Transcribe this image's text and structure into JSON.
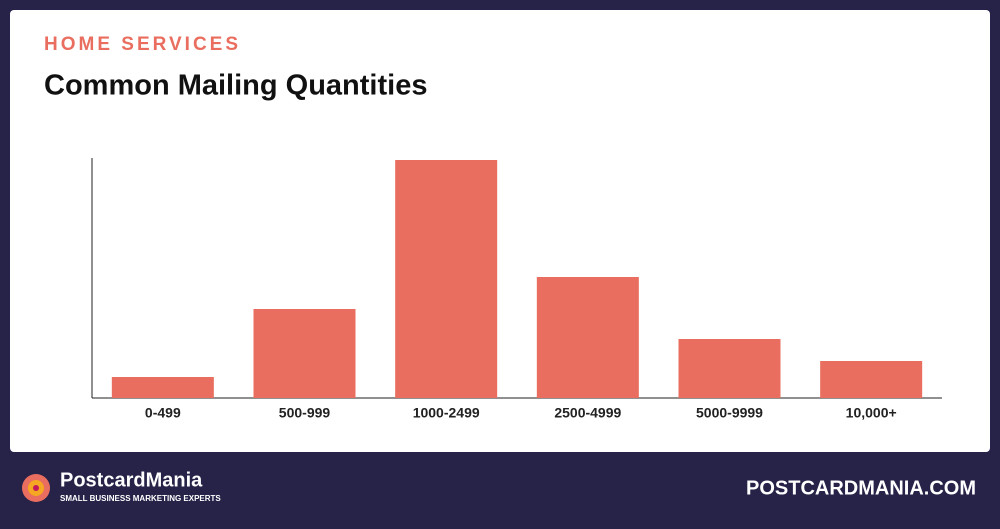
{
  "chart_data": {
    "type": "bar",
    "subtitle": "HOME SERVICES",
    "title": "Common Mailing Quantities",
    "categories": [
      "0-499",
      "500-999",
      "1000-2499",
      "2500-4999",
      "5000-9999",
      "10,000+"
    ],
    "values": [
      21,
      89,
      238,
      121,
      59,
      37
    ],
    "color": "#e96e5f",
    "ylim": [
      0,
      240
    ],
    "grid": false
  },
  "footer": {
    "brand": "PostcardMania",
    "tagline": "SMALL BUSINESS MARKETING EXPERTS",
    "website": "POSTCARDMANIA.COM"
  }
}
